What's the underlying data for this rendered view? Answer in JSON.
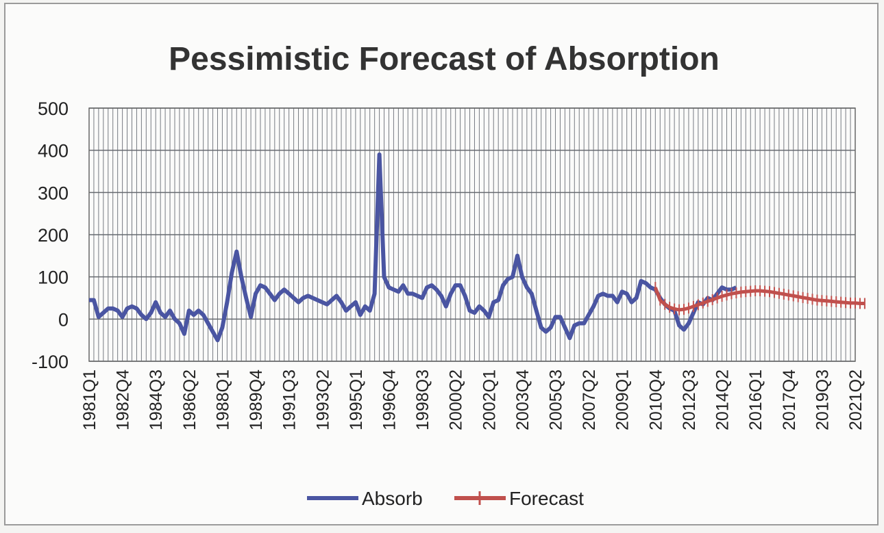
{
  "chart_data": {
    "type": "line",
    "title": "Pessimistic Forecast of Absorption",
    "xlabel": "",
    "ylabel": "",
    "ylim": [
      -100,
      500
    ],
    "yticks": [
      -100,
      0,
      100,
      200,
      300,
      400,
      500
    ],
    "grid": true,
    "legend_placement": "bottom",
    "x_tick_labels": [
      "1981Q1",
      "1982Q4",
      "1984Q3",
      "1986Q2",
      "1988Q1",
      "1989Q4",
      "1991Q3",
      "1993Q2",
      "1995Q1",
      "1996Q4",
      "1998Q3",
      "2000Q2",
      "2002Q1",
      "2003Q4",
      "2005Q3",
      "2007Q2",
      "2009Q1",
      "2010Q4",
      "2012Q3",
      "2014Q2",
      "2016Q1",
      "2017Q4",
      "2019Q3",
      "2021Q2"
    ],
    "x_start": "1981Q1",
    "x_end": "2021Q2",
    "series": [
      {
        "name": "Absorb",
        "color": "#4a55a2",
        "start": "1981Q1",
        "values": [
          45,
          45,
          5,
          15,
          25,
          25,
          20,
          5,
          25,
          30,
          25,
          10,
          0,
          15,
          40,
          15,
          5,
          20,
          0,
          -10,
          -35,
          20,
          10,
          20,
          10,
          -10,
          -30,
          -50,
          -20,
          40,
          110,
          160,
          100,
          50,
          5,
          60,
          80,
          75,
          60,
          45,
          60,
          70,
          60,
          50,
          40,
          50,
          55,
          50,
          45,
          40,
          35,
          45,
          55,
          40,
          20,
          30,
          40,
          10,
          30,
          20,
          60,
          390,
          100,
          75,
          70,
          65,
          80,
          60,
          60,
          55,
          50,
          75,
          80,
          70,
          55,
          30,
          60,
          80,
          80,
          55,
          20,
          15,
          30,
          20,
          5,
          40,
          45,
          80,
          95,
          100,
          150,
          100,
          75,
          60,
          20,
          -20,
          -30,
          -20,
          5,
          5,
          -20,
          -45,
          -15,
          -10,
          -10,
          10,
          30,
          55,
          60,
          55,
          55,
          40,
          65,
          60,
          40,
          50,
          90,
          85,
          75,
          70,
          50,
          35,
          25,
          20,
          -15,
          -25,
          -10,
          15,
          40,
          35,
          50,
          45,
          60,
          75,
          70,
          70,
          75
        ]
      },
      {
        "name": "Forecast",
        "color": "#c0504d",
        "start": "2010Q4",
        "values": [
          75,
          45,
          35,
          28,
          24,
          22,
          23,
          26,
          30,
          34,
          38,
          42,
          46,
          50,
          54,
          57,
          60,
          62,
          64,
          65,
          66,
          67,
          67,
          66,
          65,
          63,
          61,
          59,
          57,
          55,
          53,
          51,
          49,
          47,
          45,
          44,
          43,
          42,
          41,
          40,
          39,
          38,
          38,
          37,
          37
        ]
      }
    ]
  }
}
